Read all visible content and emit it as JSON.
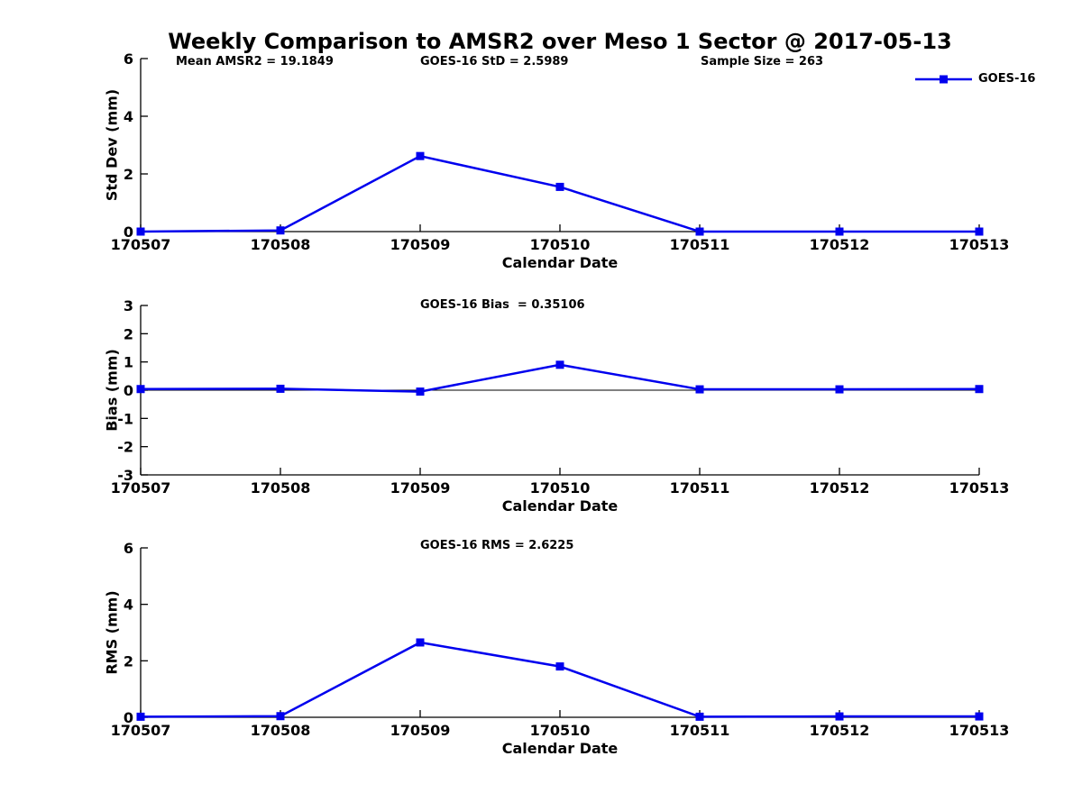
{
  "page": {
    "title": "Weekly Comparison to AMSR2 over Meso 1 Sector @ 2017-05-13"
  },
  "legend": {
    "label": "GOES-16",
    "color": "#0000ee",
    "marker": "square"
  },
  "chart_data": [
    {
      "type": "line",
      "name": "std_dev",
      "ylabel": "Std Dev (mm)",
      "xlabel": "Calendar Date",
      "ylim": [
        0,
        6
      ],
      "yticks": [
        0,
        2,
        4,
        6
      ],
      "categories": [
        "170507",
        "170508",
        "170509",
        "170510",
        "170511",
        "170512",
        "170513"
      ],
      "series": [
        {
          "name": "GOES-16",
          "values": [
            0,
            0.04,
            2.62,
            1.55,
            0,
            0,
            0
          ]
        }
      ],
      "zero_line": false,
      "grid": false,
      "legend_position": "top-right",
      "annotations": [
        {
          "text": "Mean AMSR2 = 19.1849"
        },
        {
          "text": "GOES-16 StD = 2.5989"
        },
        {
          "text": "Sample Size = 263"
        }
      ]
    },
    {
      "type": "line",
      "name": "bias",
      "ylabel": "Bias (mm)",
      "xlabel": "Calendar Date",
      "ylim": [
        -3,
        3
      ],
      "yticks": [
        -3,
        -2,
        -1,
        0,
        1,
        2,
        3
      ],
      "categories": [
        "170507",
        "170508",
        "170509",
        "170510",
        "170511",
        "170512",
        "170513"
      ],
      "series": [
        {
          "name": "GOES-16",
          "values": [
            0.04,
            0.05,
            -0.05,
            0.9,
            0.03,
            0.03,
            0.04
          ]
        }
      ],
      "zero_line": true,
      "grid": false,
      "annotations": [
        {
          "text": "GOES-16 Bias  = 0.35106"
        }
      ]
    },
    {
      "type": "line",
      "name": "rms",
      "ylabel": "RMS (mm)",
      "xlabel": "Calendar Date",
      "ylim": [
        0,
        6
      ],
      "yticks": [
        0,
        2,
        4,
        6
      ],
      "categories": [
        "170507",
        "170508",
        "170509",
        "170510",
        "170511",
        "170512",
        "170513"
      ],
      "series": [
        {
          "name": "GOES-16",
          "values": [
            0.02,
            0.04,
            2.65,
            1.8,
            0.02,
            0.03,
            0.03
          ]
        }
      ],
      "zero_line": false,
      "grid": false,
      "annotations": [
        {
          "text": "GOES-16 RMS = 2.6225"
        }
      ]
    }
  ]
}
